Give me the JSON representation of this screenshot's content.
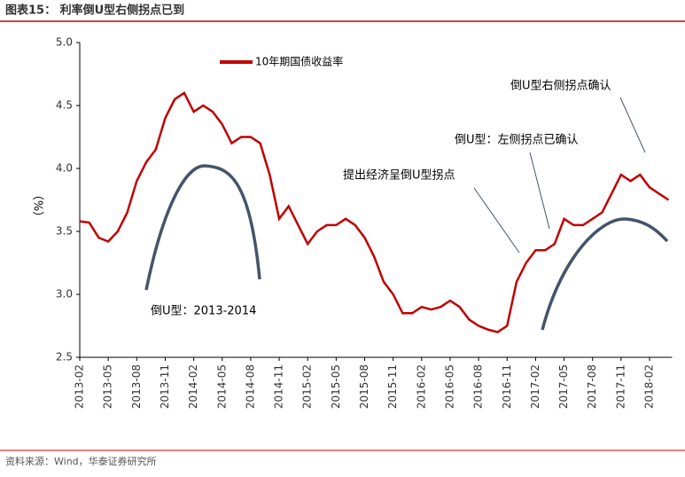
{
  "chart_data": {
    "type": "line",
    "title": "图表15： 利率倒U型右侧拐点已到",
    "source": "资料来源：Wind，华泰证券研究所",
    "ylabel": "（%）",
    "x": [
      "2013-02",
      "2013-03",
      "2013-04",
      "2013-05",
      "2013-06",
      "2013-07",
      "2013-08",
      "2013-09",
      "2013-10",
      "2013-11",
      "2013-12",
      "2014-01",
      "2014-02",
      "2014-03",
      "2014-04",
      "2014-05",
      "2014-06",
      "2014-07",
      "2014-08",
      "2014-09",
      "2014-10",
      "2014-11",
      "2014-12",
      "2015-01",
      "2015-02",
      "2015-03",
      "2015-04",
      "2015-05",
      "2015-06",
      "2015-07",
      "2015-08",
      "2015-09",
      "2015-10",
      "2015-11",
      "2015-12",
      "2016-01",
      "2016-02",
      "2016-03",
      "2016-04",
      "2016-05",
      "2016-06",
      "2016-07",
      "2016-08",
      "2016-09",
      "2016-10",
      "2016-11",
      "2016-12",
      "2017-01",
      "2017-02",
      "2017-03",
      "2017-04",
      "2017-05",
      "2017-06",
      "2017-07",
      "2017-08",
      "2017-09",
      "2017-10",
      "2017-11",
      "2017-12",
      "2018-01",
      "2018-02",
      "2018-03",
      "2018-04"
    ],
    "series": [
      {
        "name": "10年期国债收益率",
        "color": "#c00000",
        "values": [
          3.58,
          3.57,
          3.45,
          3.42,
          3.5,
          3.65,
          3.9,
          4.05,
          4.15,
          4.4,
          4.55,
          4.6,
          4.45,
          4.5,
          4.45,
          4.35,
          4.2,
          4.25,
          4.25,
          4.2,
          3.95,
          3.6,
          3.7,
          3.55,
          3.4,
          3.5,
          3.55,
          3.55,
          3.6,
          3.55,
          3.45,
          3.3,
          3.1,
          3.0,
          2.85,
          2.85,
          2.9,
          2.88,
          2.9,
          2.95,
          2.9,
          2.8,
          2.75,
          2.72,
          2.7,
          2.75,
          3.1,
          3.25,
          3.35,
          3.35,
          3.4,
          3.6,
          3.55,
          3.55,
          3.6,
          3.65,
          3.8,
          3.95,
          3.9,
          3.95,
          3.85,
          3.8,
          3.75
        ]
      }
    ],
    "xticks": [
      "2013-02",
      "2013-05",
      "2013-08",
      "2013-11",
      "2014-02",
      "2014-05",
      "2014-08",
      "2014-11",
      "2015-02",
      "2015-05",
      "2015-08",
      "2015-11",
      "2016-02",
      "2016-05",
      "2016-08",
      "2016-11",
      "2017-02",
      "2017-05",
      "2017-08",
      "2017-11",
      "2018-02"
    ],
    "ylim": [
      2.5,
      5
    ],
    "yticks": [
      {
        "value": 2.5,
        "label": "2.5"
      },
      {
        "value": 3,
        "label": "3.0"
      },
      {
        "value": 3.5,
        "label": "3.5"
      },
      {
        "value": 4,
        "label": "4.0"
      },
      {
        "value": 4.5,
        "label": "4.5"
      },
      {
        "value": 5,
        "label": "5.0"
      }
    ],
    "annotations": [
      "倒U型：2013-2014",
      "提出经济呈倒U型拐点",
      "倒U型：左侧拐点已确认",
      "倒U型右侧拐点确认"
    ]
  }
}
